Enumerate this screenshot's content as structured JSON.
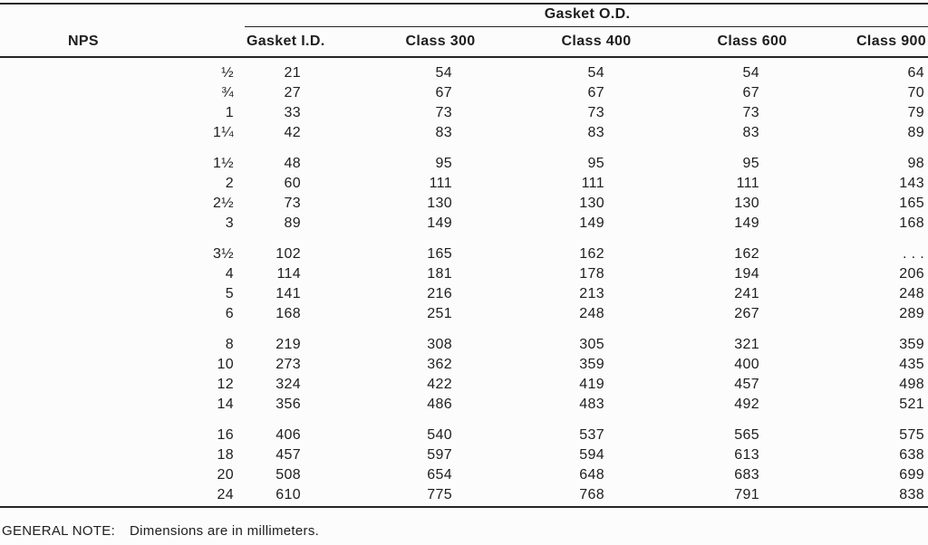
{
  "colors": {
    "ink": "#1e1e1e",
    "rule": "#252525",
    "paper": "#fcfcfc"
  },
  "table": {
    "spanner_heading": "Gasket O.D.",
    "columns": [
      "NPS",
      "Gasket I.D.",
      "Class 300",
      "Class 400",
      "Class 600",
      "Class 900"
    ],
    "groups": [
      [
        [
          "½",
          "21",
          "54",
          "54",
          "54",
          "64"
        ],
        [
          "¾",
          "27",
          "67",
          "67",
          "67",
          "70"
        ],
        [
          "1",
          "33",
          "73",
          "73",
          "73",
          "79"
        ],
        [
          "1¼",
          "42",
          "83",
          "83",
          "83",
          "89"
        ]
      ],
      [
        [
          "1½",
          "48",
          "95",
          "95",
          "95",
          "98"
        ],
        [
          "2",
          "60",
          "111",
          "111",
          "111",
          "143"
        ],
        [
          "2½",
          "73",
          "130",
          "130",
          "130",
          "165"
        ],
        [
          "3",
          "89",
          "149",
          "149",
          "149",
          "168"
        ]
      ],
      [
        [
          "3½",
          "102",
          "165",
          "162",
          "162",
          ". . ."
        ],
        [
          "4",
          "114",
          "181",
          "178",
          "194",
          "206"
        ],
        [
          "5",
          "141",
          "216",
          "213",
          "241",
          "248"
        ],
        [
          "6",
          "168",
          "251",
          "248",
          "267",
          "289"
        ]
      ],
      [
        [
          "8",
          "219",
          "308",
          "305",
          "321",
          "359"
        ],
        [
          "10",
          "273",
          "362",
          "359",
          "400",
          "435"
        ],
        [
          "12",
          "324",
          "422",
          "419",
          "457",
          "498"
        ],
        [
          "14",
          "356",
          "486",
          "483",
          "492",
          "521"
        ]
      ],
      [
        [
          "16",
          "406",
          "540",
          "537",
          "565",
          "575"
        ],
        [
          "18",
          "457",
          "597",
          "594",
          "613",
          "638"
        ],
        [
          "20",
          "508",
          "654",
          "648",
          "683",
          "699"
        ],
        [
          "24",
          "610",
          "775",
          "768",
          "791",
          "838"
        ]
      ]
    ]
  },
  "footer": {
    "label": "GENERAL NOTE:",
    "text": "Dimensions are in millimeters."
  }
}
